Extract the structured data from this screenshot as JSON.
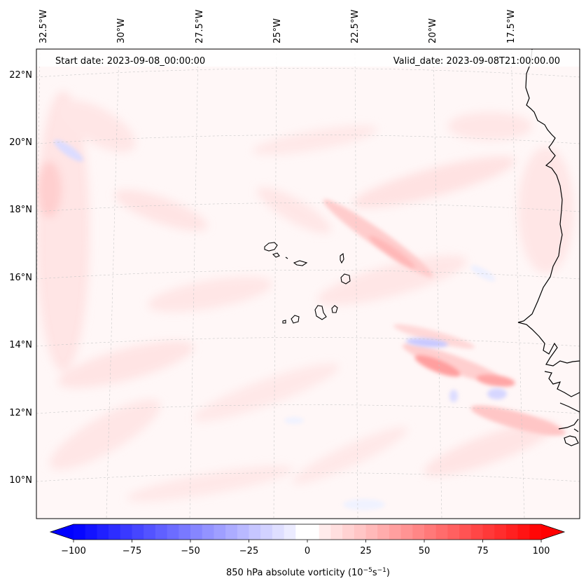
{
  "map": {
    "start_date_text": "Start date: 2023-09-08_00:00:00",
    "valid_date_text": "Valid_date: 2023-09-08T21:00:00.00",
    "lon_labels": [
      "32.5°W",
      "30°W",
      "27.5°W",
      "25°W",
      "22.5°W",
      "20°W",
      "17.5°W"
    ],
    "lat_labels": [
      "22°N",
      "20°N",
      "18°N",
      "16°N",
      "14°N",
      "12°N",
      "10°N"
    ],
    "field_name": "850 hPa absolute vorticity",
    "units_prefix": "850 hPa absolute vorticity (10",
    "units_exp1": "−5",
    "units_mid": "s",
    "units_exp2": "−1",
    "units_suffix": ")"
  },
  "colorbar": {
    "ticks": [
      "−100",
      "−75",
      "−50",
      "−25",
      "0",
      "25",
      "50",
      "75",
      "100"
    ],
    "min": -100,
    "max": 100,
    "n_levels": 40,
    "low_color": "#0000ff",
    "mid_color": "#ffffff",
    "high_color": "#ff0000"
  },
  "colors": {
    "background_field": "#fff5f5",
    "coastline": "#000000",
    "gridline": "#c8c8c8"
  }
}
